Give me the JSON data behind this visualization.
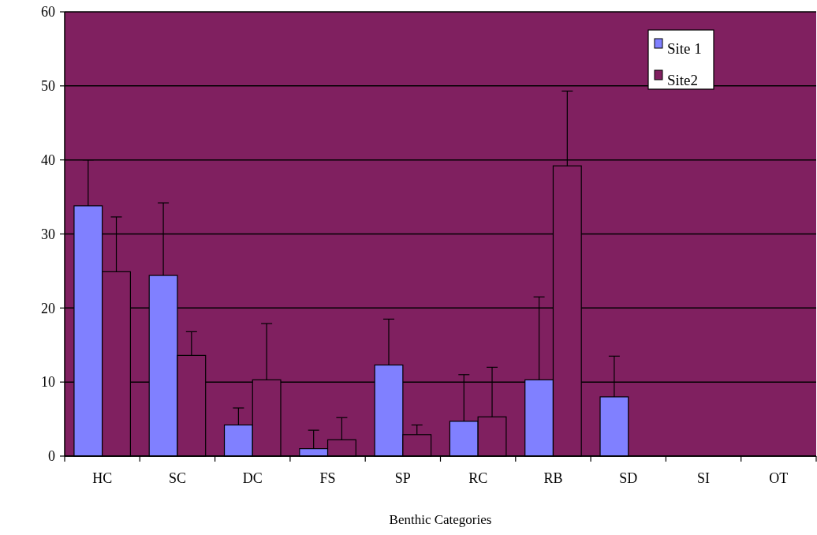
{
  "chart_data": {
    "type": "bar",
    "xlabel": "Benthic Categories",
    "categories": [
      "HC",
      "SC",
      "DC",
      "FS",
      "SP",
      "RC",
      "RB",
      "SD",
      "SI",
      "OT"
    ],
    "series": [
      {
        "name": "Site 1",
        "color": "#8080ff",
        "values": [
          33.8,
          24.4,
          4.2,
          1.0,
          12.3,
          4.7,
          10.3,
          8.0,
          null,
          null
        ],
        "errors": [
          [
            33.8,
            40.0
          ],
          [
            24.4,
            34.2
          ],
          [
            4.2,
            6.5
          ],
          [
            1.0,
            3.5
          ],
          [
            12.3,
            18.5
          ],
          [
            4.7,
            11.0
          ],
          [
            10.3,
            21.5
          ],
          [
            8.0,
            13.5
          ],
          null,
          null
        ]
      },
      {
        "name": "Site2",
        "color": "#802060",
        "values": [
          24.9,
          13.6,
          10.3,
          2.2,
          2.9,
          5.3,
          39.2,
          null,
          null,
          null
        ],
        "errors": [
          [
            24.9,
            32.3
          ],
          [
            13.6,
            16.8
          ],
          [
            10.3,
            17.9
          ],
          [
            2.2,
            5.2
          ],
          [
            2.9,
            4.2
          ],
          [
            5.3,
            12.0
          ],
          [
            39.2,
            49.3
          ],
          null,
          null,
          null
        ]
      }
    ],
    "ylim": [
      0,
      60
    ],
    "yticks": [
      0,
      10,
      20,
      30,
      40,
      50,
      60
    ],
    "grid": "y",
    "legend": "top right"
  }
}
